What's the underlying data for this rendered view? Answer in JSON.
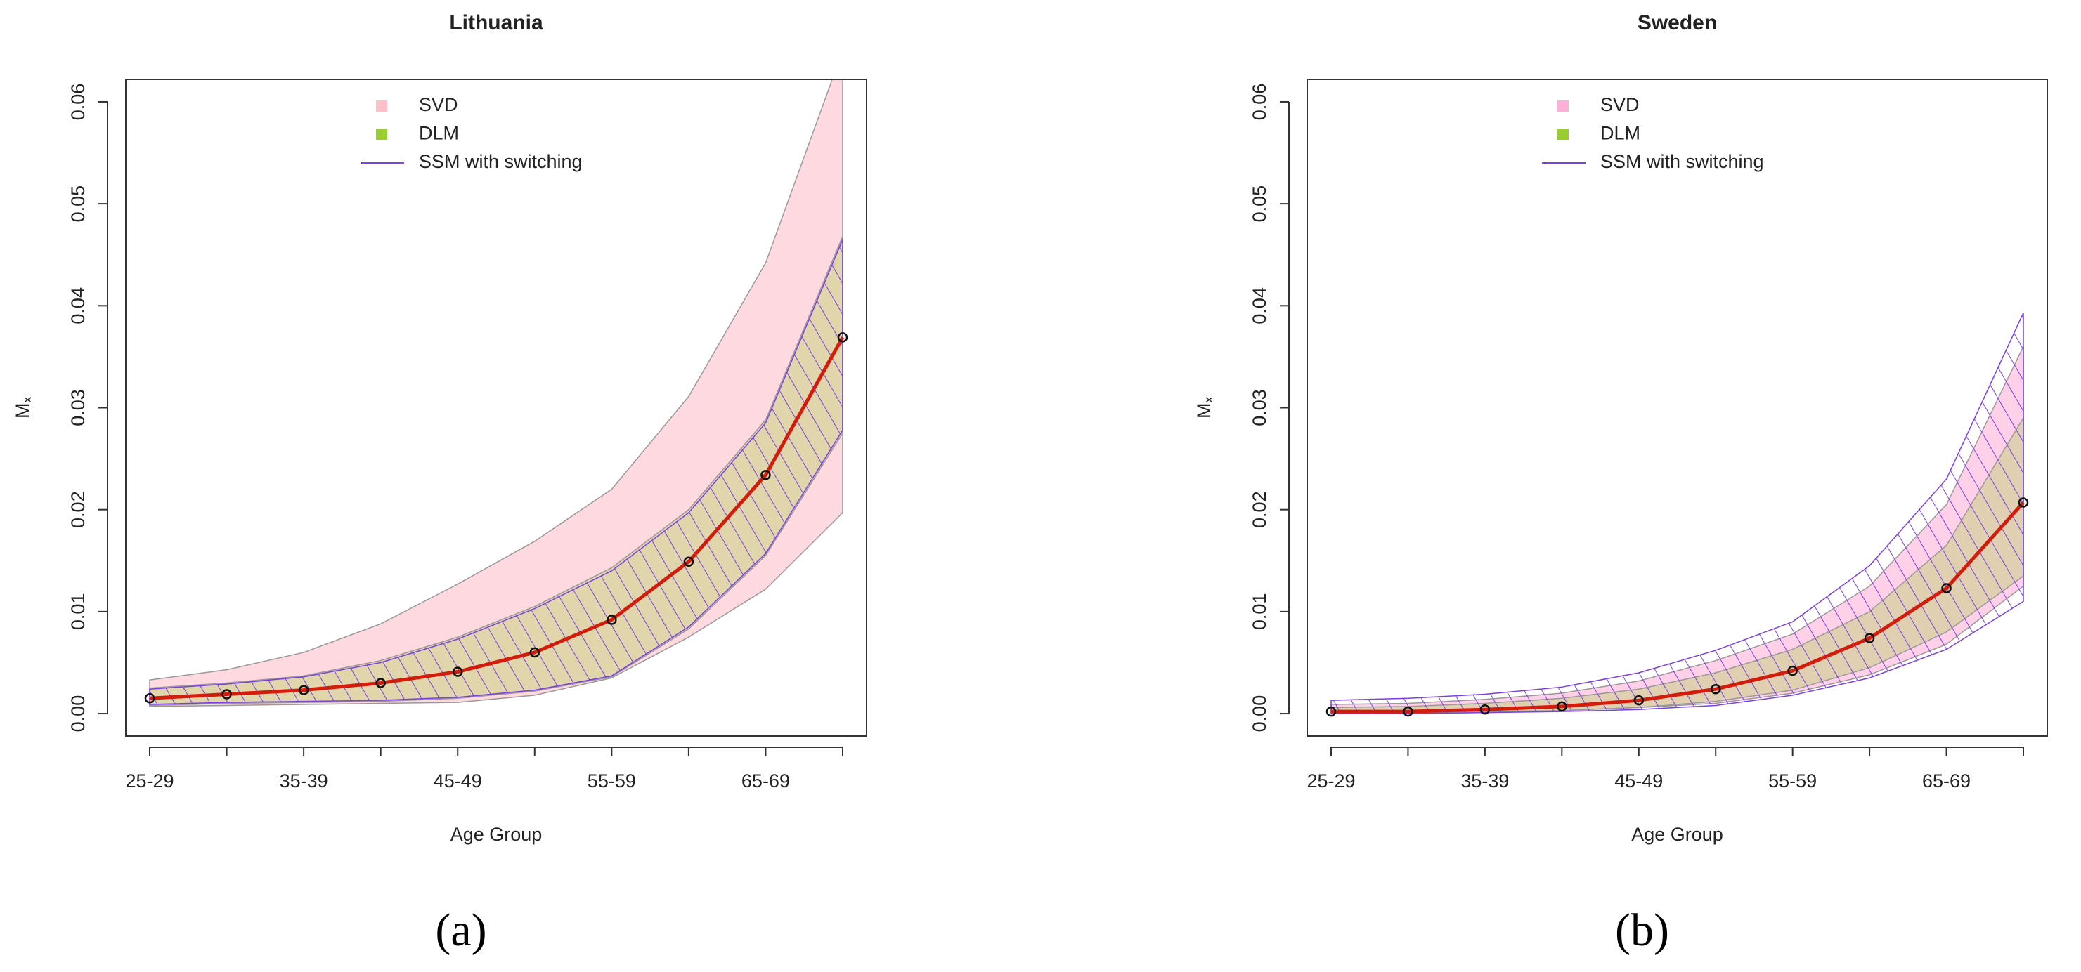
{
  "chart_data": [
    {
      "type": "line",
      "title": "Lithuania",
      "xlabel": "Age Group",
      "ylabel": "M",
      "ylabel_sub": "x",
      "panel_label": "(a)",
      "categories": [
        "25-29",
        null,
        "35-39",
        null,
        "45-49",
        null,
        "55-59",
        null,
        "65-69",
        null
      ],
      "ylim": [
        -0.0022,
        0.0622
      ],
      "yticks": [
        {
          "value": 0,
          "label": "0.00"
        },
        0.01,
        0.02,
        0.03,
        0.04,
        0.05,
        0.06
      ],
      "series": [
        {
          "name": "SVD",
          "color": "#ffc0cb",
          "lower": [
            0.0007,
            0.0008,
            0.0009,
            0.001,
            0.0011,
            0.0018,
            0.0035,
            0.0075,
            0.0122,
            0.0197
          ],
          "upper": [
            0.0033,
            0.0043,
            0.006,
            0.0088,
            0.0127,
            0.0169,
            0.022,
            0.0311,
            0.0442,
            0.065
          ]
        },
        {
          "name": "DLM",
          "color": "#9acd32",
          "lower": [
            0.0008,
            0.001,
            0.0011,
            0.0012,
            0.0015,
            0.0022,
            0.0036,
            0.0083,
            0.0155,
            0.0275
          ],
          "upper": [
            0.0025,
            0.003,
            0.0037,
            0.0052,
            0.0075,
            0.0105,
            0.0143,
            0.02,
            0.0288,
            0.0468
          ]
        },
        {
          "name": "SSM with switching",
          "color": "#7b3fe4",
          "lower": [
            0.0009,
            0.0011,
            0.0012,
            0.0013,
            0.0016,
            0.0023,
            0.0037,
            0.0085,
            0.0157,
            0.0278
          ],
          "upper": [
            0.0024,
            0.0029,
            0.0036,
            0.005,
            0.0073,
            0.0103,
            0.014,
            0.0197,
            0.0285,
            0.0465
          ]
        },
        {
          "color": "#d41c0c",
          "values": [
            0.0015,
            0.0019,
            0.0023,
            0.003,
            0.0041,
            0.006,
            0.0092,
            0.0149,
            0.0234,
            0.0369
          ]
        }
      ]
    },
    {
      "type": "line",
      "title": "Sweden",
      "xlabel": "Age Group",
      "ylabel": "M",
      "ylabel_sub": "x",
      "panel_label": "(b)",
      "categories": [
        "25-29",
        null,
        "35-39",
        null,
        "45-49",
        null,
        "55-59",
        null,
        "65-69",
        null
      ],
      "ylim": [
        -0.0022,
        0.0622
      ],
      "yticks": [
        {
          "value": 0,
          "label": "0.00"
        },
        0.01,
        0.02,
        0.03,
        0.04,
        0.05,
        0.06
      ],
      "series": [
        {
          "name": "SVD",
          "color": "#ffb0d8",
          "lower": [
            0.0001,
            0.0001,
            0.0002,
            0.0003,
            0.0006,
            0.001,
            0.002,
            0.0038,
            0.0068,
            0.0125
          ],
          "upper": [
            0.0009,
            0.001,
            0.0014,
            0.002,
            0.0032,
            0.0052,
            0.0078,
            0.0125,
            0.0205,
            0.036
          ]
        },
        {
          "name": "DLM",
          "color": "#9acd32",
          "lower": [
            0,
            0,
            0.0001,
            0.0003,
            0.0006,
            0.0012,
            0.0023,
            0.0045,
            0.008,
            0.0135
          ],
          "upper": [
            0.0006,
            0.0007,
            0.001,
            0.0015,
            0.0024,
            0.004,
            0.0063,
            0.01,
            0.0165,
            0.029
          ]
        },
        {
          "name": "SSM with switching",
          "color": "#7b3fe4",
          "lower": [
            0,
            0,
            0.0001,
            0.0002,
            0.0004,
            0.0008,
            0.0018,
            0.0035,
            0.0063,
            0.011
          ],
          "upper": [
            0.0013,
            0.0015,
            0.0019,
            0.0026,
            0.004,
            0.0062,
            0.009,
            0.0145,
            0.023,
            0.0393
          ]
        },
        {
          "color": "#d41c0c",
          "values": [
            0.0002,
            0.0002,
            0.0004,
            0.0007,
            0.0013,
            0.0024,
            0.0042,
            0.0074,
            0.0123,
            0.0207
          ]
        }
      ]
    }
  ]
}
